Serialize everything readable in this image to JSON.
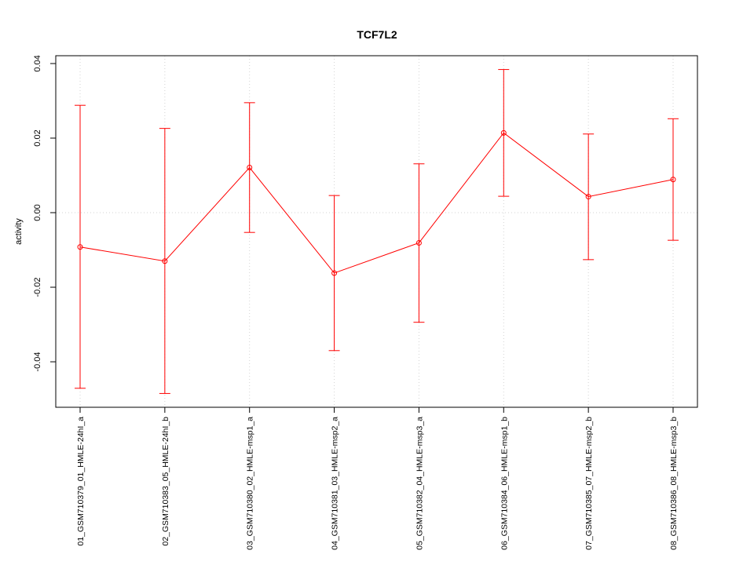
{
  "chart_data": {
    "type": "line",
    "title": "TCF7L2",
    "xlabel": "",
    "ylabel": "activity",
    "categories": [
      "01_GSM710379_01_HMLE-24hI_a",
      "02_GSM710383_05_HMLE-24hI_b",
      "03_GSM710380_02_HMLE-msp1_a",
      "04_GSM710381_03_HMLE-msp2_a",
      "05_GSM710382_04_HMLE-msp3_a",
      "06_GSM710384_06_HMLE-msp1_b",
      "07_GSM710385_07_HMLE-msp2_b",
      "08_GSM710386_08_HMLE-msp3_b"
    ],
    "series": [
      {
        "values": [
          -0.0092,
          -0.013,
          0.0121,
          -0.0162,
          -0.0081,
          0.0214,
          0.0043,
          0.0089
        ],
        "lower": [
          -0.0471,
          -0.0485,
          -0.0053,
          -0.037,
          -0.0294,
          0.0044,
          -0.0126,
          -0.0074
        ],
        "upper": [
          0.0288,
          0.0226,
          0.0295,
          0.0046,
          0.0131,
          0.0384,
          0.0211,
          0.0252
        ],
        "color": "#ff0000"
      }
    ],
    "yticks": [
      -0.04,
      -0.02,
      0.0,
      0.02,
      0.04
    ],
    "ytick_labels": [
      "-0.04",
      "-0.02",
      "0.00",
      "0.02",
      "0.04"
    ],
    "ylim": [
      -0.0522,
      0.0421
    ],
    "grid": true,
    "grid_color": "#d3d3d3",
    "axis_color": "#000000"
  }
}
